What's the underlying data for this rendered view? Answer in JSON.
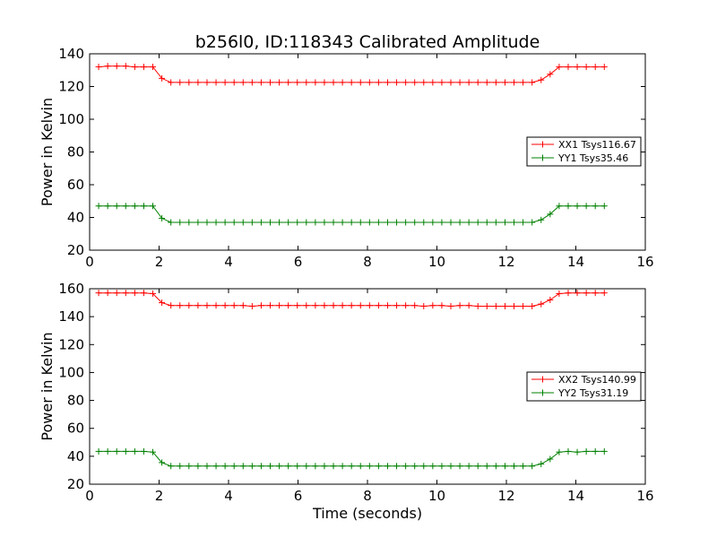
{
  "figure": {
    "title": "b256l0, ID:118343 Calibrated Amplitude",
    "xlabel": "Time (seconds)"
  },
  "chart_data": [
    {
      "type": "line",
      "title": "b256l0, ID:118343 Calibrated Amplitude",
      "xlabel": "",
      "ylabel": "Power in Kelvin",
      "xlim": [
        0,
        16
      ],
      "ylim": [
        20,
        140
      ],
      "xticks": [
        0,
        2,
        4,
        6,
        8,
        10,
        12,
        14,
        16
      ],
      "yticks": [
        20,
        40,
        60,
        80,
        100,
        120,
        140
      ],
      "grid": false,
      "legend_position": "right",
      "series": [
        {
          "name": "XX1 Tsys116.67",
          "color": "#ff0000",
          "marker": "+",
          "x": [
            0.26,
            0.52,
            0.78,
            1.04,
            1.3,
            1.56,
            1.82,
            2.08,
            2.34,
            2.6,
            2.86,
            3.12,
            3.38,
            3.64,
            3.9,
            4.16,
            4.42,
            4.68,
            4.94,
            5.2,
            5.46,
            5.72,
            5.98,
            6.24,
            6.5,
            6.76,
            7.02,
            7.28,
            7.54,
            7.8,
            8.06,
            8.32,
            8.58,
            8.84,
            9.1,
            9.36,
            9.62,
            9.88,
            10.14,
            10.4,
            10.66,
            10.92,
            11.18,
            11.44,
            11.7,
            11.96,
            12.22,
            12.48,
            12.74,
            13.0,
            13.26,
            13.52,
            13.78,
            14.04,
            14.3,
            14.56,
            14.82
          ],
          "y": [
            132,
            132.5,
            132.5,
            132.5,
            132,
            132,
            132,
            125,
            122.5,
            122.5,
            122.5,
            122.5,
            122.5,
            122.5,
            122.5,
            122.5,
            122.5,
            122.5,
            122.5,
            122.5,
            122.5,
            122.5,
            122.5,
            122.5,
            122.5,
            122.5,
            122.5,
            122.5,
            122.5,
            122.5,
            122.5,
            122.5,
            122.5,
            122.5,
            122.5,
            122.5,
            122.5,
            122.5,
            122.5,
            122.5,
            122.5,
            122.5,
            122.5,
            122.5,
            122.5,
            122.5,
            122.5,
            122.5,
            122.5,
            124,
            127.5,
            132,
            132,
            132,
            132,
            132,
            132
          ]
        },
        {
          "name": "YY1 Tsys35.46",
          "color": "#008000",
          "marker": "+",
          "x": [
            0.26,
            0.52,
            0.78,
            1.04,
            1.3,
            1.56,
            1.82,
            2.08,
            2.34,
            2.6,
            2.86,
            3.12,
            3.38,
            3.64,
            3.9,
            4.16,
            4.42,
            4.68,
            4.94,
            5.2,
            5.46,
            5.72,
            5.98,
            6.24,
            6.5,
            6.76,
            7.02,
            7.28,
            7.54,
            7.8,
            8.06,
            8.32,
            8.58,
            8.84,
            9.1,
            9.36,
            9.62,
            9.88,
            10.14,
            10.4,
            10.66,
            10.92,
            11.18,
            11.44,
            11.7,
            11.96,
            12.22,
            12.48,
            12.74,
            13.0,
            13.26,
            13.52,
            13.78,
            14.04,
            14.3,
            14.56,
            14.82
          ],
          "y": [
            47,
            47,
            47,
            47,
            47,
            47,
            47,
            39.5,
            37,
            37,
            37,
            37,
            37,
            37,
            37,
            37,
            37,
            37,
            37,
            37,
            37,
            37,
            37,
            37,
            37,
            37,
            37,
            37,
            37,
            37,
            37,
            37,
            37,
            37,
            37,
            37,
            37,
            37,
            37,
            37,
            37,
            37,
            37,
            37,
            37,
            37,
            37,
            37,
            37,
            38.5,
            42,
            47,
            47,
            47,
            47,
            47,
            47
          ]
        }
      ]
    },
    {
      "type": "line",
      "title": "",
      "xlabel": "Time (seconds)",
      "ylabel": "Power in Kelvin",
      "xlim": [
        0,
        16
      ],
      "ylim": [
        20,
        160
      ],
      "xticks": [
        0,
        2,
        4,
        6,
        8,
        10,
        12,
        14,
        16
      ],
      "yticks": [
        20,
        40,
        60,
        80,
        100,
        120,
        140,
        160
      ],
      "grid": false,
      "legend_position": "right",
      "series": [
        {
          "name": "XX2 Tsys140.99",
          "color": "#ff0000",
          "marker": "+",
          "x": [
            0.26,
            0.52,
            0.78,
            1.04,
            1.3,
            1.56,
            1.82,
            2.08,
            2.34,
            2.6,
            2.86,
            3.12,
            3.38,
            3.64,
            3.9,
            4.16,
            4.42,
            4.68,
            4.94,
            5.2,
            5.46,
            5.72,
            5.98,
            6.24,
            6.5,
            6.76,
            7.02,
            7.28,
            7.54,
            7.8,
            8.06,
            8.32,
            8.58,
            8.84,
            9.1,
            9.36,
            9.62,
            9.88,
            10.14,
            10.4,
            10.66,
            10.92,
            11.18,
            11.44,
            11.7,
            11.96,
            12.22,
            12.48,
            12.74,
            13.0,
            13.26,
            13.52,
            13.78,
            14.04,
            14.3,
            14.56,
            14.82
          ],
          "y": [
            157,
            157,
            157,
            157,
            157,
            157,
            156.5,
            150,
            148,
            148,
            148,
            148,
            148,
            148,
            148,
            148,
            148,
            147.5,
            148,
            148,
            148,
            148,
            148,
            148,
            148,
            148,
            148,
            148,
            148,
            148,
            148,
            148,
            148,
            148,
            148,
            148,
            147.5,
            148,
            148,
            147.5,
            148,
            148,
            147.5,
            147.5,
            147.5,
            147.5,
            147.5,
            147.5,
            147.5,
            149,
            152,
            156.5,
            157,
            157,
            157,
            157,
            157
          ]
        },
        {
          "name": "YY2 Tsys31.19",
          "color": "#008000",
          "marker": "+",
          "x": [
            0.26,
            0.52,
            0.78,
            1.04,
            1.3,
            1.56,
            1.82,
            2.08,
            2.34,
            2.6,
            2.86,
            3.12,
            3.38,
            3.64,
            3.9,
            4.16,
            4.42,
            4.68,
            4.94,
            5.2,
            5.46,
            5.72,
            5.98,
            6.24,
            6.5,
            6.76,
            7.02,
            7.28,
            7.54,
            7.8,
            8.06,
            8.32,
            8.58,
            8.84,
            9.1,
            9.36,
            9.62,
            9.88,
            10.14,
            10.4,
            10.66,
            10.92,
            11.18,
            11.44,
            11.7,
            11.96,
            12.22,
            12.48,
            12.74,
            13.0,
            13.26,
            13.52,
            13.78,
            14.04,
            14.3,
            14.56,
            14.82
          ],
          "y": [
            43.5,
            43.5,
            43.5,
            43.5,
            43.5,
            43.5,
            43,
            35.5,
            33,
            33,
            33,
            33,
            33,
            33,
            33,
            33,
            33,
            33,
            33,
            33,
            33,
            33,
            33,
            33,
            33,
            33,
            33,
            33,
            33,
            33,
            33,
            33,
            33,
            33,
            33,
            33,
            33,
            33,
            33,
            33,
            33,
            33,
            33,
            33,
            33,
            33,
            33,
            33,
            33,
            34.5,
            38,
            43,
            43.5,
            43,
            43.5,
            43.5,
            43.5
          ]
        }
      ]
    }
  ]
}
